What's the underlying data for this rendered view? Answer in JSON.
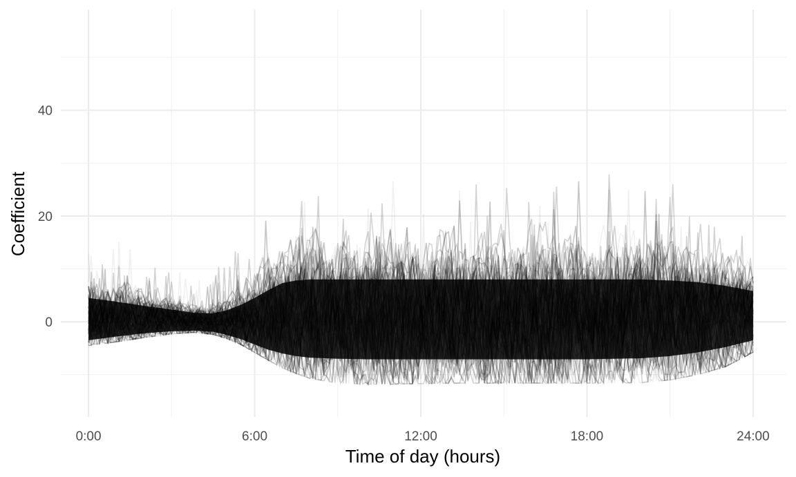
{
  "chart_data": {
    "type": "line",
    "title": "",
    "xlabel": "Time of day (hours)",
    "ylabel": "Coefficient",
    "xlim": [
      -1,
      25.2
    ],
    "ylim": [
      -18,
      59
    ],
    "x_ticks": [
      {
        "value": 0,
        "label": "0:00"
      },
      {
        "value": 6,
        "label": "6:00"
      },
      {
        "value": 12,
        "label": "12:00"
      },
      {
        "value": 18,
        "label": "18:00"
      },
      {
        "value": 24,
        "label": "24:00"
      }
    ],
    "y_ticks": [
      {
        "value": 0,
        "label": "0"
      },
      {
        "value": 20,
        "label": "20"
      },
      {
        "value": 40,
        "label": "40"
      }
    ],
    "x_minor": [
      3,
      9,
      15,
      21
    ],
    "y_minor": [
      -10,
      10,
      30,
      50
    ],
    "grid": true,
    "legend": "none",
    "series_style": {
      "color": "#000000",
      "alpha": 0.06
    },
    "envelope": {
      "description_points": "approximate band of the posterior draws, in data units",
      "x": [
        0,
        1,
        2,
        3,
        3.8,
        4.5,
        5,
        5.5,
        6,
        6.5,
        7,
        7.5,
        8,
        9,
        10,
        11,
        12,
        13,
        14,
        15,
        16,
        17,
        18,
        19,
        20,
        21,
        22,
        23,
        24
      ],
      "lower": [
        -4.5,
        -3.8,
        -3.0,
        -2.3,
        -2.0,
        -2.4,
        -3.2,
        -4.3,
        -5.8,
        -7.3,
        -8.7,
        -9.8,
        -10.7,
        -11.6,
        -11.8,
        -11.8,
        -11.7,
        -11.6,
        -11.6,
        -11.6,
        -11.6,
        -11.6,
        -11.6,
        -11.6,
        -11.5,
        -11.0,
        -10.0,
        -8.5,
        -5.8
      ],
      "core_low": [
        -3.5,
        -2.8,
        -2.2,
        -1.8,
        -1.7,
        -1.9,
        -2.5,
        -3.3,
        -4.3,
        -5.3,
        -6.0,
        -6.5,
        -6.8,
        -7.0,
        -7.1,
        -7.1,
        -7.1,
        -7.1,
        -7.1,
        -7.1,
        -7.1,
        -7.1,
        -7.1,
        -7.0,
        -6.9,
        -6.5,
        -5.8,
        -4.8,
        -3.5
      ],
      "core_high": [
        4.5,
        3.8,
        3.0,
        2.3,
        1.7,
        1.6,
        2.2,
        3.2,
        4.5,
        6.0,
        7.3,
        7.8,
        8.0,
        8.0,
        8.0,
        8.0,
        8.0,
        8.0,
        8.0,
        8.0,
        8.0,
        8.0,
        8.0,
        8.0,
        8.0,
        7.8,
        7.5,
        6.8,
        5.8
      ],
      "upper": [
        15,
        13,
        11,
        9.5,
        9,
        9.5,
        11,
        13.5,
        15.5,
        17.5,
        19,
        20,
        20,
        20,
        20,
        20,
        20,
        20,
        20,
        20,
        20,
        20,
        20,
        20,
        20,
        20,
        19,
        18,
        16
      ]
    },
    "n_draws": 200
  }
}
